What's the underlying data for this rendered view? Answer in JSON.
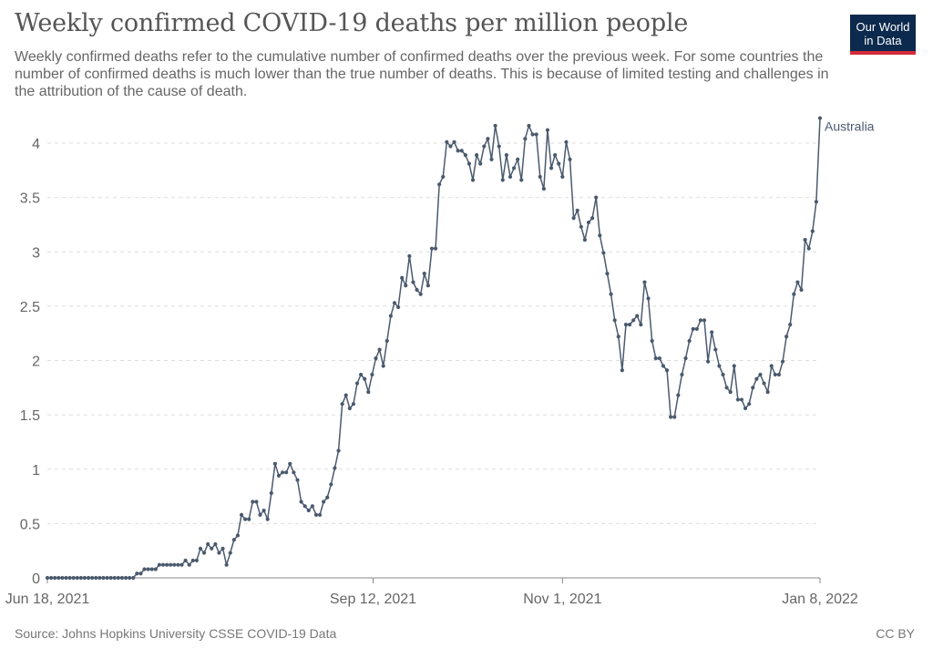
{
  "title": "Weekly confirmed COVID-19 deaths per million people",
  "subtitle": "Weekly confirmed deaths refer to the cumulative number of confirmed deaths over the previous week. For some countries the number of confirmed deaths is much lower than the true number of deaths. This is because of limited testing and challenges in the attribution of the cause of death.",
  "logo": {
    "line1": "Our World",
    "line2": "in Data",
    "bg_color": "#0c2a4d",
    "accent_color": "#d42b3a"
  },
  "source": "Source: Johns Hopkins University CSSE COVID-19 Data",
  "license": "CC BY",
  "chart_data": {
    "type": "line",
    "x_start": "2021-06-18",
    "x_end": "2022-01-08",
    "xticks": [
      {
        "date": "2021-06-18",
        "label": "Jun 18, 2021"
      },
      {
        "date": "2021-09-12",
        "label": "Sep 12, 2021"
      },
      {
        "date": "2021-11-01",
        "label": "Nov 1, 2021"
      },
      {
        "date": "2022-01-08",
        "label": "Jan 8, 2022"
      }
    ],
    "yticks": [
      "0",
      "0.5",
      "1",
      "1.5",
      "2",
      "2.5",
      "3",
      "3.5",
      "4"
    ],
    "ylim": [
      0,
      4.25
    ],
    "grid": "horizontal dashed",
    "series": [
      {
        "name": "Australia",
        "color": "#4a5a6e",
        "values": [
          0,
          0,
          0,
          0,
          0,
          0,
          0,
          0,
          0,
          0,
          0,
          0,
          0,
          0,
          0,
          0,
          0,
          0,
          0,
          0,
          0,
          0,
          0,
          0,
          0.04,
          0.04,
          0.08,
          0.08,
          0.08,
          0.08,
          0.12,
          0.12,
          0.12,
          0.12,
          0.12,
          0.12,
          0.12,
          0.16,
          0.12,
          0.16,
          0.16,
          0.27,
          0.23,
          0.31,
          0.27,
          0.31,
          0.23,
          0.27,
          0.12,
          0.23,
          0.35,
          0.39,
          0.58,
          0.54,
          0.54,
          0.7,
          0.7,
          0.58,
          0.62,
          0.54,
          0.78,
          1.05,
          0.94,
          0.97,
          0.97,
          1.05,
          0.97,
          0.9,
          0.7,
          0.66,
          0.62,
          0.66,
          0.58,
          0.58,
          0.7,
          0.74,
          0.86,
          1.01,
          1.17,
          1.6,
          1.68,
          1.56,
          1.6,
          1.79,
          1.87,
          1.83,
          1.71,
          1.87,
          2.02,
          2.1,
          1.95,
          2.18,
          2.41,
          2.53,
          2.49,
          2.76,
          2.69,
          2.96,
          2.72,
          2.65,
          2.61,
          2.8,
          2.69,
          3.03,
          3.03,
          3.62,
          3.69,
          4.01,
          3.97,
          4.01,
          3.93,
          3.93,
          3.89,
          3.81,
          3.66,
          3.89,
          3.81,
          3.97,
          4.04,
          3.85,
          4.16,
          3.97,
          3.66,
          3.89,
          3.69,
          3.77,
          3.85,
          3.66,
          4.04,
          4.16,
          4.08,
          4.08,
          3.69,
          3.58,
          4.12,
          3.77,
          3.89,
          3.81,
          3.69,
          4.01,
          3.85,
          3.31,
          3.38,
          3.23,
          3.11,
          3.27,
          3.31,
          3.5,
          3.15,
          2.99,
          2.8,
          2.61,
          2.37,
          2.22,
          1.91,
          2.33,
          2.33,
          2.37,
          2.41,
          2.33,
          2.72,
          2.57,
          2.18,
          2.02,
          2.02,
          1.95,
          1.91,
          1.48,
          1.48,
          1.68,
          1.87,
          2.02,
          2.18,
          2.29,
          2.29,
          2.37,
          2.37,
          1.99,
          2.26,
          2.1,
          1.95,
          1.87,
          1.75,
          1.71,
          1.95,
          1.64,
          1.64,
          1.56,
          1.6,
          1.75,
          1.83,
          1.87,
          1.79,
          1.71,
          1.95,
          1.87,
          1.87,
          1.99,
          2.22,
          2.33,
          2.61,
          2.72,
          2.65,
          3.11,
          3.03,
          3.19,
          3.46,
          4.23
        ]
      }
    ]
  }
}
